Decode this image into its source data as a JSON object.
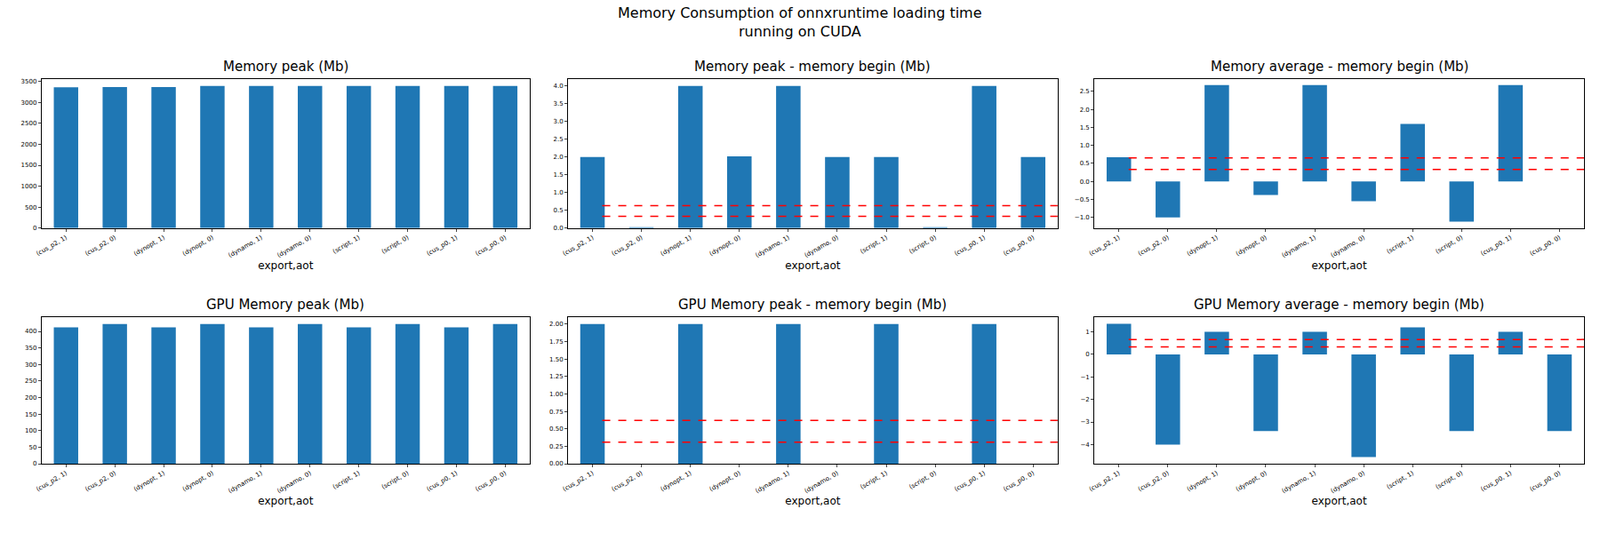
{
  "title": "Memory Consumption of onnxruntime loading time\nrunning on CUDA",
  "chart_data": [
    {
      "type": "bar",
      "title": "Memory peak (Mb)",
      "x_label": "export,aot",
      "categories": [
        "(cus_p2, 1)",
        "(cus_p2, 0)",
        "(dynopt, 1)",
        "(dynopt, 0)",
        "(dynamo, 1)",
        "(dynamo, 0)",
        "(script, 1)",
        "(script, 0)",
        "(cus_p0, 1)",
        "(cus_p0, 0)"
      ],
      "values": [
        3360,
        3365,
        3365,
        3390,
        3390,
        3390,
        3390,
        3390,
        3390,
        3390
      ],
      "color": "#1f77b4",
      "ylim": [
        0,
        3560
      ],
      "yticks": [
        0,
        500,
        1000,
        1500,
        2000,
        2500,
        3000,
        3500
      ]
    },
    {
      "type": "bar",
      "title": "Memory peak - memory begin (Mb)",
      "x_label": "export,aot",
      "categories": [
        "(cus_p2, 1)",
        "(cus_p2, 0)",
        "(dynopt, 1)",
        "(dynopt, 0)",
        "(dynamo, 1)",
        "(dynamo, 0)",
        "(script, 1)",
        "(script, 0)",
        "(cus_p0, 1)",
        "(cus_p0, 0)"
      ],
      "values": [
        2.0,
        0.02,
        4.0,
        2.02,
        4.0,
        2.0,
        2.0,
        0.02,
        4.0,
        2.0
      ],
      "color": "#1f77b4",
      "ylim": [
        0,
        4.2
      ],
      "yticks": [
        {
          "value": 0,
          "label": "0.0"
        },
        {
          "value": 0.5,
          "label": "0.5"
        },
        {
          "value": 1,
          "label": "1.0"
        },
        {
          "value": 1.5,
          "label": "1.5"
        },
        {
          "value": 2,
          "label": "2.0"
        },
        {
          "value": 2.5,
          "label": "2.5"
        },
        {
          "value": 3,
          "label": "3.0"
        },
        {
          "value": 3.5,
          "label": "3.5"
        },
        {
          "value": 4,
          "label": "4.0"
        }
      ],
      "reference_lines": {
        "values": [
          0.33,
          0.63
        ],
        "color": "#ff0000",
        "line_style": "dashed"
      }
    },
    {
      "type": "bar",
      "title": "Memory average - memory begin (Mb)",
      "x_label": "export,aot",
      "categories": [
        "(cus_p2, 1)",
        "(cus_p2, 0)",
        "(dynopt, 1)",
        "(dynopt, 0)",
        "(dynamo, 1)",
        "(dynamo, 0)",
        "(script, 1)",
        "(script, 0)",
        "(cus_p0, 1)",
        "(cus_p0, 0)"
      ],
      "values": [
        0.67,
        -1.0,
        2.68,
        -0.38,
        2.68,
        -0.55,
        1.6,
        -1.12,
        2.68,
        0
      ],
      "color": "#1f77b4",
      "ylim": [
        -1.3,
        2.85
      ],
      "yticks": [
        {
          "value": -1,
          "label": "−1.0"
        },
        {
          "value": -0.5,
          "label": "−0.5"
        },
        {
          "value": 0,
          "label": "0.0"
        },
        {
          "value": 0.5,
          "label": "0.5"
        },
        {
          "value": 1,
          "label": "1.0"
        },
        {
          "value": 1.5,
          "label": "1.5"
        },
        {
          "value": 2,
          "label": "2.0"
        },
        {
          "value": 2.5,
          "label": "2.5"
        }
      ],
      "reference_lines": {
        "values": [
          0.33,
          0.65
        ],
        "color": "#ff0000",
        "line_style": "dashed"
      }
    },
    {
      "type": "bar",
      "title": "GPU Memory peak (Mb)",
      "x_label": "export,aot",
      "categories": [
        "(cus_p2, 1)",
        "(cus_p2, 0)",
        "(dynopt, 1)",
        "(dynopt, 0)",
        "(dynamo, 1)",
        "(dynamo, 0)",
        "(script, 1)",
        "(script, 0)",
        "(cus_p0, 1)",
        "(cus_p0, 0)"
      ],
      "values": [
        412,
        422,
        412,
        422,
        412,
        422,
        412,
        422,
        412,
        422
      ],
      "color": "#1f77b4",
      "ylim": [
        0,
        443
      ],
      "yticks": [
        0,
        50,
        100,
        150,
        200,
        250,
        300,
        350,
        400
      ]
    },
    {
      "type": "bar",
      "title": "GPU Memory peak - memory begin (Mb)",
      "x_label": "export,aot",
      "categories": [
        "(cus_p2, 1)",
        "(cus_p2, 0)",
        "(dynopt, 1)",
        "(dynopt, 0)",
        "(dynamo, 1)",
        "(dynamo, 0)",
        "(script, 1)",
        "(script, 0)",
        "(cus_p0, 1)",
        "(cus_p0, 0)"
      ],
      "values": [
        2,
        0,
        2,
        0,
        2,
        0,
        2,
        0,
        2,
        0
      ],
      "color": "#1f77b4",
      "ylim": [
        0,
        2.1
      ],
      "yticks": [
        {
          "value": 0,
          "label": "0.00"
        },
        {
          "value": 0.25,
          "label": "0.25"
        },
        {
          "value": 0.5,
          "label": "0.50"
        },
        {
          "value": 0.75,
          "label": "0.75"
        },
        {
          "value": 1,
          "label": "1.00"
        },
        {
          "value": 1.25,
          "label": "1.25"
        },
        {
          "value": 1.5,
          "label": "1.50"
        },
        {
          "value": 1.75,
          "label": "1.75"
        },
        {
          "value": 2,
          "label": "2.00"
        }
      ],
      "reference_lines": {
        "values": [
          0.31,
          0.62
        ],
        "color": "#ff0000",
        "line_style": "dashed"
      }
    },
    {
      "type": "bar",
      "title": "GPU Memory average - memory begin (Mb)",
      "x_label": "export,aot",
      "categories": [
        "(cus_p2, 1)",
        "(cus_p2, 0)",
        "(dynopt, 1)",
        "(dynopt, 0)",
        "(dynamo, 1)",
        "(dynamo, 0)",
        "(script, 1)",
        "(script, 0)",
        "(cus_p0, 1)",
        "(cus_p0, 0)"
      ],
      "values": [
        1.35,
        -4.0,
        1.0,
        -3.4,
        1.0,
        -4.55,
        1.2,
        -3.4,
        1.0,
        -3.4
      ],
      "color": "#1f77b4",
      "ylim": [
        -4.85,
        1.65
      ],
      "yticks": [
        {
          "value": -4,
          "label": "−4"
        },
        {
          "value": -3,
          "label": "−3"
        },
        {
          "value": -2,
          "label": "−2"
        },
        {
          "value": -1,
          "label": "−1"
        },
        0,
        1
      ],
      "reference_lines": {
        "values": [
          0.33,
          0.66
        ],
        "color": "#ff0000",
        "line_style": "dashed"
      }
    }
  ]
}
